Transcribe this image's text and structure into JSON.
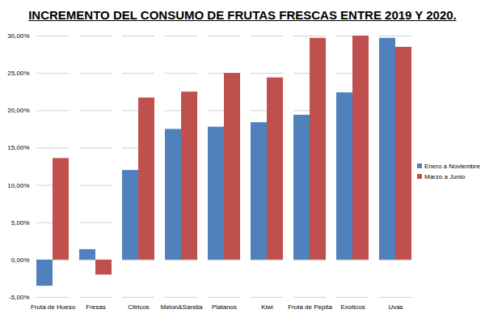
{
  "chart_data": {
    "type": "bar",
    "title": "INCREMENTO DEL CONSUMO DE FRUTAS FRESCAS ENTRE 2019 Y 2020.",
    "categories": [
      "Fruta de Hueso",
      "Fresas",
      "Citricos",
      "Melon&Sandia",
      "Platanos",
      "Kiwi",
      "Fruta de Pepita",
      "Exoticos",
      "Uvas"
    ],
    "series": [
      {
        "name": "Enero a Noviembre",
        "color": "#4f81bd",
        "values": [
          -3.5,
          1.4,
          12.0,
          17.5,
          17.8,
          18.4,
          19.4,
          22.4,
          29.7
        ]
      },
      {
        "name": "Marzo a Junio",
        "color": "#c0504d",
        "values": [
          13.6,
          -2.0,
          21.7,
          22.5,
          25.0,
          24.4,
          29.7,
          30.0,
          28.5
        ]
      }
    ],
    "ylim": [
      -5,
      30
    ],
    "yticks": [
      {
        "value": -5,
        "label": "-5,00%"
      },
      {
        "value": 0,
        "label": "0,00%"
      },
      {
        "value": 5,
        "label": "5,00%"
      },
      {
        "value": 10,
        "label": "10,00%"
      },
      {
        "value": 15,
        "label": "15,00%"
      },
      {
        "value": 20,
        "label": "20,00%"
      },
      {
        "value": 25,
        "label": "25,00%"
      },
      {
        "value": 30,
        "label": "30,00%"
      }
    ],
    "grid": true,
    "legend": "right"
  }
}
